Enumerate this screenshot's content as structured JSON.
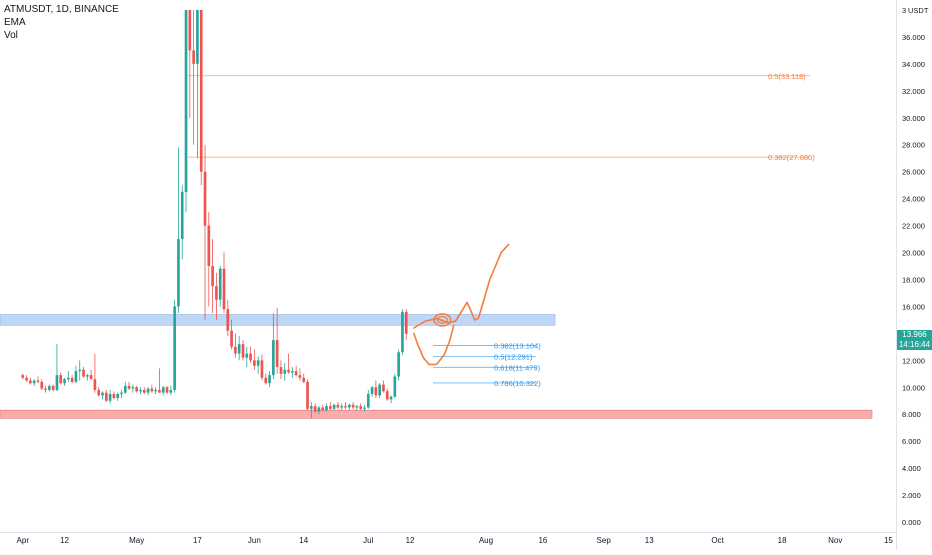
{
  "legend": {
    "symbol_line": "ATMUSDT, 1D, BINANCE",
    "indicator_1": "EMA",
    "indicator_2": "Vol"
  },
  "price_axis": {
    "unit": "USDT",
    "top_partial_label": "3",
    "ticks": [
      "36.000",
      "34.000",
      "32.000",
      "30.000",
      "28.000",
      "26.000",
      "24.000",
      "22.000",
      "20.000",
      "18.000",
      "16.000",
      "14.000",
      "12.000",
      "10.000",
      "8.000",
      "6.000",
      "4.000",
      "2.000",
      "0.000"
    ],
    "last_price": "13.966",
    "countdown": "14:16:44"
  },
  "time_axis": {
    "ticks": [
      "Apr",
      "12",
      "May",
      "17",
      "Jun",
      "14",
      "Jul",
      "12",
      "Aug",
      "16",
      "Sep",
      "13",
      "Oct",
      "18",
      "Nov",
      "15"
    ]
  },
  "colors": {
    "up": "#26a69a",
    "down": "#ef5350",
    "fib_upper": "#f57c3a",
    "fib_lower": "#2196f3",
    "drawing": "#f57c3a",
    "support_zone": "#f8a5a5",
    "resistance_zone": "#aac8f0"
  },
  "chart_data": {
    "type": "candlestick",
    "symbol": "ATMUSDT",
    "interval": "1D",
    "exchange": "BINANCE",
    "ylim": [
      0,
      38
    ],
    "x_range_days": [
      -6,
      230
    ],
    "x_ticks_days": [
      0,
      11,
      30,
      46,
      61,
      74,
      91,
      102,
      122,
      137,
      153,
      165,
      183,
      200,
      214,
      228
    ],
    "candles_ohlc": [
      [
        10.9,
        11.0,
        10.6,
        10.7
      ],
      [
        10.7,
        10.9,
        10.4,
        10.5
      ],
      [
        10.5,
        10.7,
        10.2,
        10.3
      ],
      [
        10.3,
        10.6,
        10.1,
        10.5
      ],
      [
        10.5,
        10.8,
        10.3,
        10.4
      ],
      [
        10.4,
        10.6,
        9.8,
        9.9
      ],
      [
        9.9,
        10.1,
        9.6,
        9.8
      ],
      [
        9.8,
        10.2,
        9.7,
        10.1
      ],
      [
        10.1,
        10.2,
        9.7,
        9.8
      ],
      [
        9.8,
        13.2,
        9.7,
        10.9
      ],
      [
        10.9,
        11.1,
        10.2,
        10.3
      ],
      [
        10.3,
        10.7,
        10.1,
        10.6
      ],
      [
        10.6,
        11.2,
        10.4,
        10.7
      ],
      [
        10.7,
        10.9,
        10.3,
        10.4
      ],
      [
        10.4,
        11.6,
        10.3,
        11.2
      ],
      [
        11.2,
        12.0,
        10.5,
        11.3
      ],
      [
        11.3,
        11.5,
        10.7,
        10.8
      ],
      [
        10.8,
        11.0,
        10.5,
        10.9
      ],
      [
        10.9,
        11.3,
        10.6,
        10.6
      ],
      [
        10.6,
        12.5,
        9.6,
        9.8
      ],
      [
        9.8,
        10.0,
        9.3,
        9.4
      ],
      [
        9.4,
        9.7,
        9.1,
        9.6
      ],
      [
        9.6,
        9.8,
        8.9,
        9.0
      ],
      [
        9.0,
        9.8,
        8.8,
        9.5
      ],
      [
        9.5,
        9.7,
        9.1,
        9.2
      ],
      [
        9.2,
        9.6,
        9.0,
        9.5
      ],
      [
        9.5,
        9.8,
        9.2,
        9.6
      ],
      [
        9.6,
        10.4,
        9.5,
        10.1
      ],
      [
        10.1,
        10.4,
        9.8,
        9.9
      ],
      [
        9.9,
        10.2,
        9.6,
        10.0
      ],
      [
        10.0,
        10.1,
        9.6,
        9.7
      ],
      [
        9.7,
        10.0,
        9.5,
        9.8
      ],
      [
        9.8,
        10.0,
        9.5,
        9.6
      ],
      [
        9.6,
        10.0,
        9.4,
        9.9
      ],
      [
        9.9,
        10.2,
        9.6,
        9.7
      ],
      [
        9.7,
        10.0,
        9.5,
        9.8
      ],
      [
        9.8,
        11.4,
        9.6,
        9.6
      ],
      [
        9.6,
        10.1,
        9.4,
        10.0
      ],
      [
        10.0,
        10.1,
        9.5,
        9.6
      ],
      [
        9.6,
        10.1,
        9.4,
        9.8
      ],
      [
        9.8,
        16.5,
        9.6,
        16.0
      ],
      [
        16.0,
        27.8,
        15.5,
        21.0
      ],
      [
        21.0,
        25.0,
        19.5,
        24.5
      ],
      [
        24.5,
        38.0,
        23.0,
        38.0
      ],
      [
        38.0,
        38.0,
        30.0,
        35.0
      ],
      [
        35.0,
        38.0,
        28.0,
        34.0
      ],
      [
        34.0,
        38.0,
        27.0,
        38.0
      ],
      [
        38.0,
        38.0,
        25.0,
        26.0
      ],
      [
        26.0,
        28.0,
        15.0,
        22.0
      ],
      [
        22.0,
        23.0,
        16.0,
        19.0
      ],
      [
        19.0,
        21.0,
        15.5,
        17.5
      ],
      [
        17.5,
        18.5,
        15.0,
        16.5
      ],
      [
        16.5,
        19.0,
        16.0,
        18.8
      ],
      [
        18.8,
        20.0,
        15.5,
        15.8
      ],
      [
        15.8,
        16.5,
        13.8,
        14.2
      ],
      [
        14.2,
        15.0,
        12.8,
        13.0
      ],
      [
        13.0,
        14.0,
        12.2,
        12.5
      ],
      [
        12.5,
        13.8,
        12.0,
        13.2
      ],
      [
        13.2,
        13.5,
        12.0,
        12.2
      ],
      [
        12.2,
        13.0,
        11.5,
        12.5
      ],
      [
        12.5,
        13.0,
        11.8,
        12.0
      ],
      [
        12.0,
        12.8,
        11.3,
        11.6
      ],
      [
        11.6,
        12.3,
        11.0,
        12.0
      ],
      [
        12.0,
        12.4,
        10.5,
        10.7
      ],
      [
        10.7,
        11.0,
        10.2,
        10.3
      ],
      [
        10.3,
        11.2,
        10.0,
        10.9
      ],
      [
        10.9,
        15.5,
        10.6,
        13.5
      ],
      [
        13.5,
        15.9,
        11.0,
        11.5
      ],
      [
        11.5,
        12.0,
        10.6,
        11.0
      ],
      [
        11.0,
        11.8,
        10.5,
        11.3
      ],
      [
        11.3,
        12.5,
        11.0,
        11.1
      ],
      [
        11.1,
        11.5,
        10.7,
        11.2
      ],
      [
        11.2,
        11.6,
        10.8,
        10.9
      ],
      [
        10.9,
        11.4,
        10.5,
        10.7
      ],
      [
        10.7,
        11.0,
        10.3,
        10.4
      ],
      [
        10.4,
        10.6,
        8.3,
        8.4
      ],
      [
        8.4,
        8.9,
        7.7,
        8.6
      ],
      [
        8.6,
        8.8,
        8.1,
        8.2
      ],
      [
        8.2,
        8.6,
        8.0,
        8.5
      ],
      [
        8.5,
        8.7,
        8.2,
        8.3
      ],
      [
        8.3,
        8.8,
        8.2,
        8.6
      ],
      [
        8.6,
        8.9,
        8.3,
        8.4
      ],
      [
        8.4,
        8.8,
        8.3,
        8.7
      ],
      [
        8.7,
        8.9,
        8.4,
        8.5
      ],
      [
        8.5,
        8.8,
        8.3,
        8.6
      ],
      [
        8.6,
        8.9,
        8.4,
        8.5
      ],
      [
        8.5,
        8.8,
        8.3,
        8.7
      ],
      [
        8.7,
        8.9,
        8.4,
        8.5
      ],
      [
        8.5,
        8.7,
        8.3,
        8.6
      ],
      [
        8.6,
        8.8,
        8.3,
        8.4
      ],
      [
        8.4,
        8.7,
        8.2,
        8.5
      ],
      [
        8.5,
        9.8,
        8.4,
        9.5
      ],
      [
        9.5,
        10.1,
        9.3,
        10.0
      ],
      [
        10.0,
        10.5,
        9.2,
        9.4
      ],
      [
        9.4,
        10.3,
        9.2,
        10.2
      ],
      [
        10.2,
        10.5,
        9.6,
        9.7
      ],
      [
        9.7,
        9.9,
        9.0,
        9.1
      ],
      [
        9.1,
        9.4,
        8.8,
        9.3
      ],
      [
        9.3,
        11.0,
        9.2,
        10.8
      ],
      [
        10.8,
        12.8,
        10.5,
        12.6
      ],
      [
        12.6,
        15.8,
        12.4,
        15.6
      ],
      [
        15.6,
        15.8,
        13.5,
        13.966
      ]
    ],
    "levels": [
      {
        "label": "0.5(33.118)",
        "price": 33.118,
        "group": "upper"
      },
      {
        "label": "0.382(27.080)",
        "price": 27.08,
        "group": "upper"
      },
      {
        "label": "0.382(13.104)",
        "price": 13.104,
        "group": "lower"
      },
      {
        "label": "0.5(12.291)",
        "price": 12.291,
        "group": "lower"
      },
      {
        "label": "0.618(11.479)",
        "price": 11.479,
        "group": "lower"
      },
      {
        "label": "0.786(10.322)",
        "price": 10.322,
        "group": "lower"
      }
    ],
    "zones": [
      {
        "name": "resistance",
        "from": 14.6,
        "to": 15.4
      },
      {
        "name": "support",
        "from": 7.7,
        "to": 8.3
      }
    ],
    "projection_path": [
      [
        103,
        14.4
      ],
      [
        106,
        14.9
      ],
      [
        109,
        15.1
      ],
      [
        112,
        14.8
      ],
      [
        114,
        14.9
      ],
      [
        115.5,
        15.6
      ],
      [
        117,
        16.3
      ],
      [
        118,
        15.7
      ],
      [
        119,
        15.0
      ],
      [
        120,
        15.1
      ],
      [
        123,
        18.0
      ],
      [
        126,
        20.0
      ],
      [
        128,
        20.6
      ]
    ],
    "sketch_paths": [
      [
        [
          103,
          14.0
        ],
        [
          104,
          13.2
        ],
        [
          105.5,
          12.2
        ],
        [
          107,
          11.7
        ],
        [
          109,
          11.7
        ],
        [
          111,
          12.4
        ],
        [
          112.5,
          13.5
        ],
        [
          113.5,
          14.6
        ]
      ]
    ],
    "highlight_ellipse": {
      "cx": 110.5,
      "cy": 15.0,
      "rx": 2.2,
      "ry": 0.45
    }
  }
}
